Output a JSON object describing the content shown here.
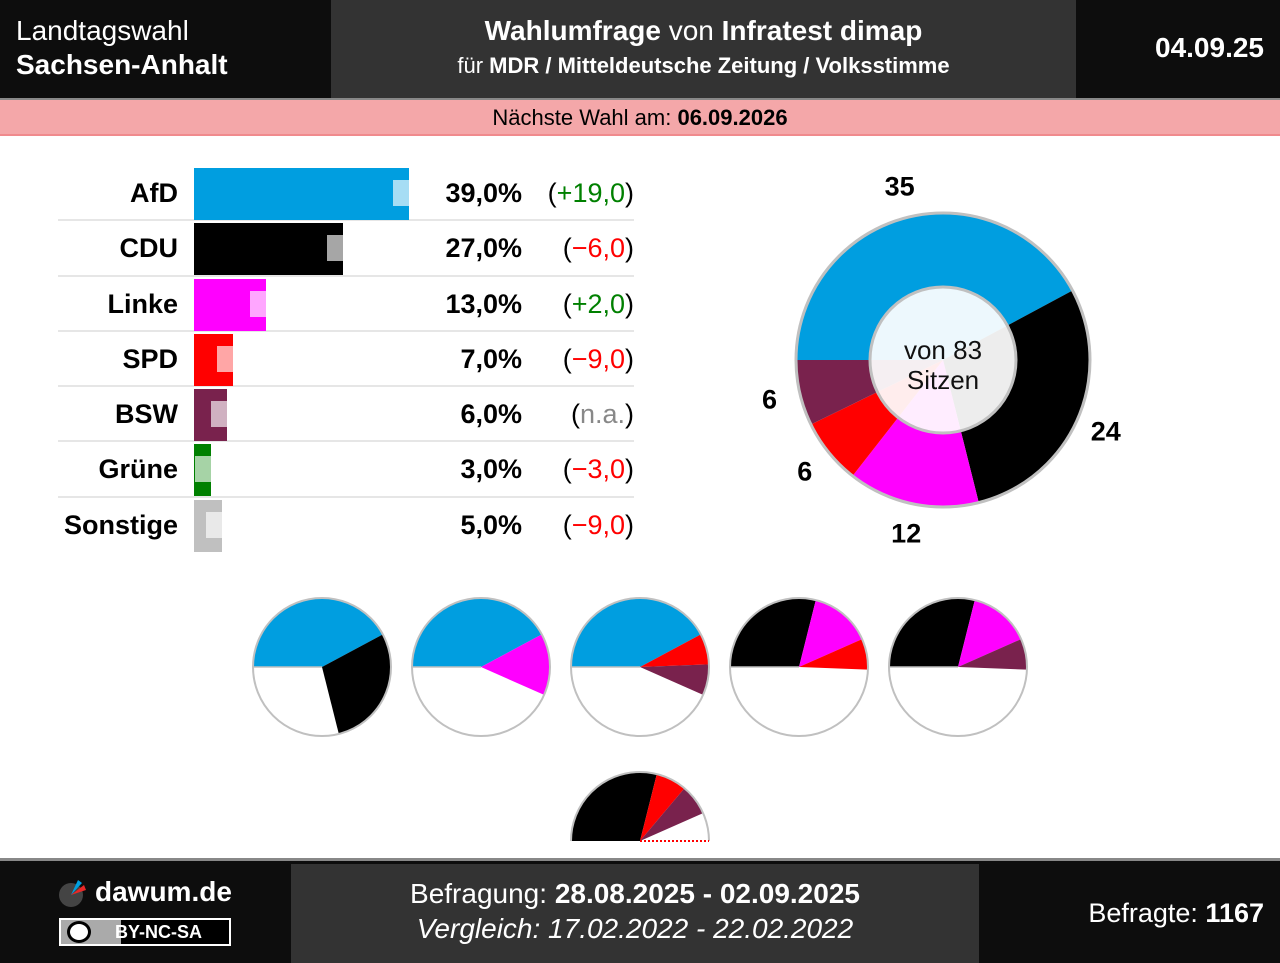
{
  "header": {
    "election_type": "Landtagswahl",
    "state": "Sachsen-Anhalt",
    "title_bold_1": "Wahlumfrage",
    "title_mid": " von ",
    "title_bold_2": "Infratest dimap",
    "subtitle_prefix": "für ",
    "subtitle_clients": "MDR / Mitteldeutsche Zeitung / Volksstimme",
    "publish_date": "04.09.25"
  },
  "next_election": {
    "label": "Nächste Wahl am: ",
    "date": "06.09.2026"
  },
  "colors": {
    "AfD": "#009ee0",
    "CDU": "#000000",
    "Linke": "#ff00ff",
    "SPD": "#ff0000",
    "BSW": "#79224d",
    "Grüne": "#008000",
    "Sonstige": "#c0c0c0",
    "positive": "#008000",
    "negative": "#ff0000",
    "not_available": "#888888",
    "header_dark": "#0d0d0d",
    "header_mid": "#333333",
    "next_election_bg": "#f4a7a9"
  },
  "chart_data": [
    {
      "type": "bar",
      "title": "Umfragewerte",
      "orientation": "horizontal",
      "categories": [
        "AfD",
        "CDU",
        "Linke",
        "SPD",
        "BSW",
        "Grüne",
        "Sonstige"
      ],
      "values": [
        39.0,
        27.0,
        13.0,
        7.0,
        6.0,
        3.0,
        5.0
      ],
      "value_labels": [
        "39,0%",
        "27,0%",
        "13,0%",
        "7,0%",
        "6,0%",
        "3,0%",
        "5,0%"
      ],
      "comparison_values": [
        20.0,
        33.0,
        11.0,
        16.0,
        null,
        6.0,
        14.0
      ],
      "diff_labels": [
        "+19,0",
        "−6,0",
        "+2,0",
        "−9,0",
        "n.a.",
        "−3,0",
        "−9,0"
      ],
      "diff_sign": [
        "pos",
        "neg",
        "pos",
        "neg",
        "na",
        "neg",
        "neg"
      ],
      "unit": "%"
    },
    {
      "type": "pie",
      "title": "Sitzverteilung",
      "categories": [
        "AfD",
        "CDU",
        "Linke",
        "SPD",
        "BSW"
      ],
      "values": [
        35,
        24,
        12,
        6,
        6
      ],
      "total_seats": 83,
      "center_label_1": "von 83",
      "center_label_2": "Sitzen",
      "donut": true
    },
    {
      "type": "pie",
      "title": "Koalitionen",
      "total_seats": 83,
      "coalitions": [
        {
          "parties": [
            "AfD",
            "CDU"
          ],
          "seats": [
            35,
            24
          ]
        },
        {
          "parties": [
            "AfD",
            "Linke"
          ],
          "seats": [
            35,
            12
          ]
        },
        {
          "parties": [
            "AfD",
            "SPD",
            "BSW"
          ],
          "seats": [
            35,
            6,
            6
          ]
        },
        {
          "parties": [
            "CDU",
            "Linke",
            "SPD"
          ],
          "seats": [
            24,
            12,
            6
          ]
        },
        {
          "parties": [
            "CDU",
            "Linke",
            "BSW"
          ],
          "seats": [
            24,
            12,
            6
          ]
        },
        {
          "parties": [
            "CDU",
            "SPD",
            "BSW"
          ],
          "seats": [
            24,
            6,
            6
          ],
          "no_majority": true
        }
      ]
    }
  ],
  "footer": {
    "brand": "dawum.de",
    "license_cc": "cc",
    "license": "BY-NC-SA",
    "survey_label": "Befragung: ",
    "survey_period": "28.08.2025 - 02.09.2025",
    "compare_label": "Vergleich: ",
    "compare_period": "17.02.2022 - 22.02.2022",
    "respondents_label": "Befragte: ",
    "respondents": "1167"
  }
}
